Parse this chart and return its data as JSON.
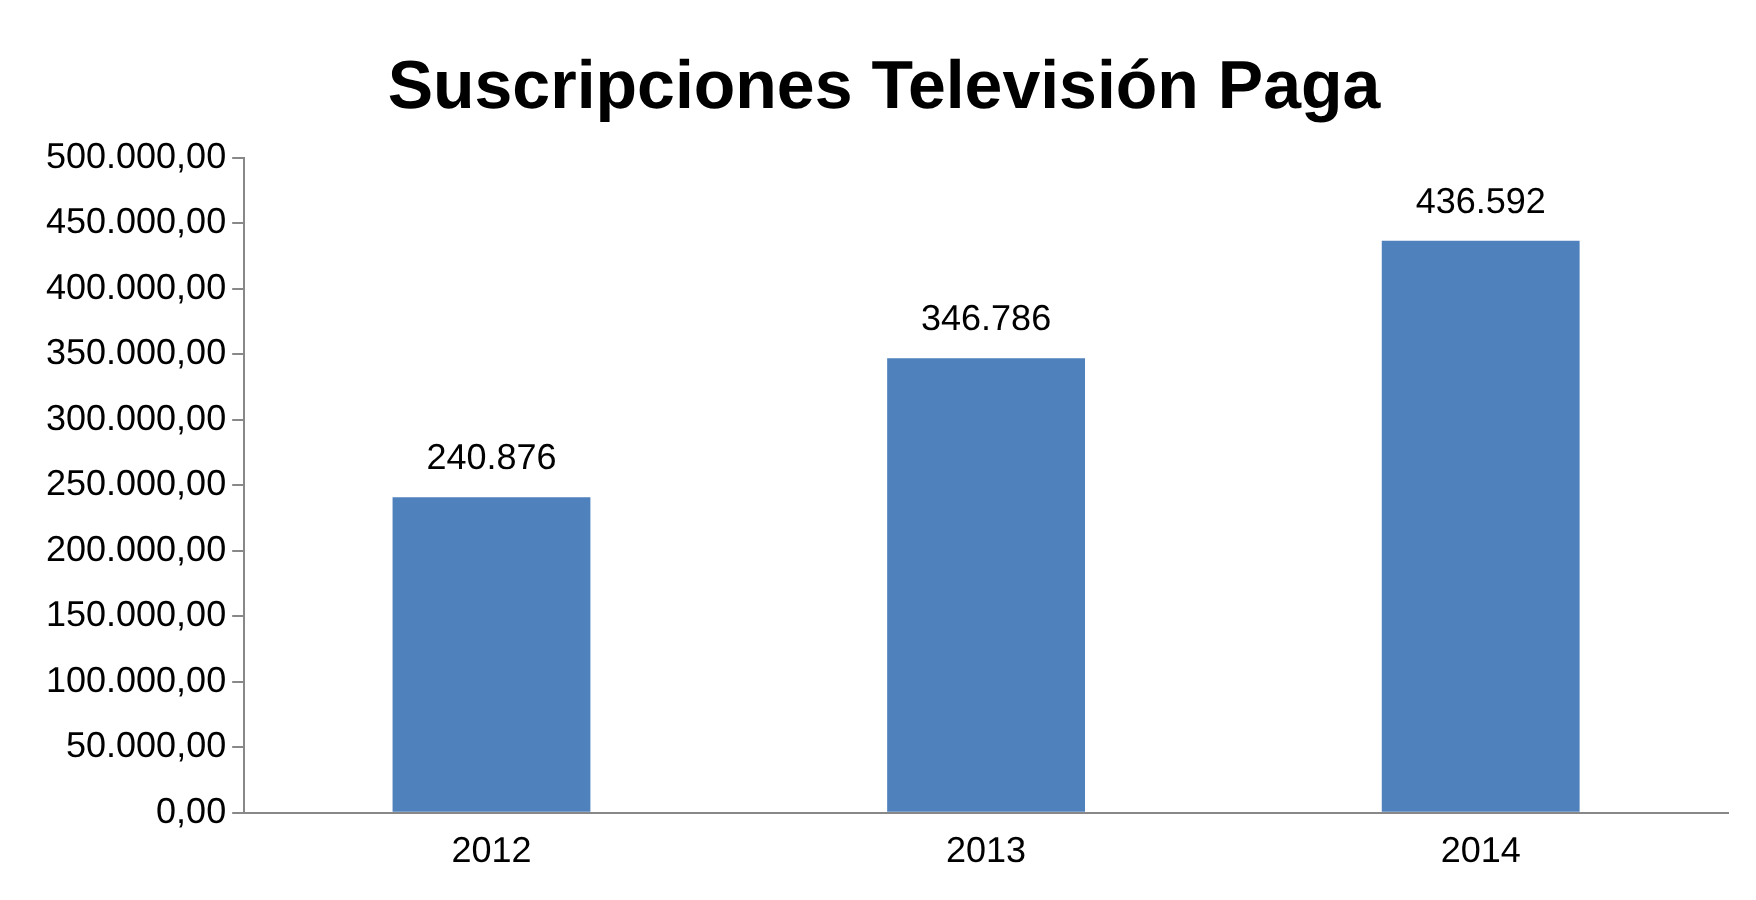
{
  "chart_data": {
    "type": "bar",
    "title": "Suscripciones Televisión Paga",
    "categories": [
      "2012",
      "2013",
      "2014"
    ],
    "values": [
      240876,
      346786,
      436592
    ],
    "value_labels": [
      "240.876",
      "346.786",
      "436.592"
    ],
    "color": "#4f81bd",
    "ylim": [
      0,
      500000
    ],
    "yticks": [
      {
        "value": 0,
        "label": "0,00"
      },
      {
        "value": 50000,
        "label": "50.000,00"
      },
      {
        "value": 100000,
        "label": "100.000,00"
      },
      {
        "value": 150000,
        "label": "150.000,00"
      },
      {
        "value": 200000,
        "label": "200.000,00"
      },
      {
        "value": 250000,
        "label": "250.000,00"
      },
      {
        "value": 300000,
        "label": "300.000,00"
      },
      {
        "value": 350000,
        "label": "350.000,00"
      },
      {
        "value": 400000,
        "label": "400.000,00"
      },
      {
        "value": 450000,
        "label": "450.000,00"
      },
      {
        "value": 500000,
        "label": "500.000,00"
      }
    ],
    "grid": false,
    "legend": false
  }
}
